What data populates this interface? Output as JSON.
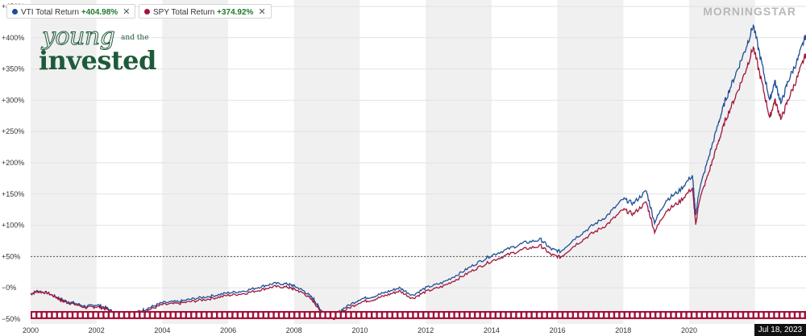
{
  "logo": {
    "line1": "young",
    "line2": "and the",
    "line3": "invested"
  },
  "brand": "MORNINGSTAR",
  "current_date_label": "Jul 18, 2023",
  "colors": {
    "vti": "#1f4e96",
    "spy": "#a0163a",
    "band": "#f0f0f0",
    "strip": "#a3133a"
  },
  "legend": [
    {
      "name": "VTI Total Return",
      "value": "+404.98%",
      "color": "#1f4e96"
    },
    {
      "name": "SPY Total Return",
      "value": "+374.92%",
      "color": "#a0163a"
    }
  ],
  "chart_data": {
    "type": "line",
    "xlabel": "",
    "ylabel": "",
    "xlim": [
      2000,
      2023.55
    ],
    "ylim": [
      -50,
      450
    ],
    "x_ticks": [
      "2000",
      "2002",
      "2004",
      "2006",
      "2008",
      "2010",
      "2012",
      "2014",
      "2016",
      "2018",
      "2020",
      "2022"
    ],
    "y_ticks": [
      "+450%",
      "+400%",
      "+350%",
      "+300%",
      "+250%",
      "+200%",
      "+150%",
      "+100%",
      "+50%",
      "−0%",
      "−50%"
    ],
    "reference_line": {
      "value": 50,
      "label": "+50%"
    },
    "grid": "alternating vertical bands",
    "legend_position": "top-left",
    "series": [
      {
        "name": "VTI Total Return",
        "points": [
          [
            2000.0,
            -10
          ],
          [
            2000.2,
            -5
          ],
          [
            2000.5,
            -8
          ],
          [
            2000.8,
            -15
          ],
          [
            2001.0,
            -20
          ],
          [
            2001.3,
            -24
          ],
          [
            2001.7,
            -30
          ],
          [
            2002.0,
            -27
          ],
          [
            2002.3,
            -32
          ],
          [
            2002.6,
            -42
          ],
          [
            2002.8,
            -45
          ],
          [
            2003.0,
            -44
          ],
          [
            2003.3,
            -38
          ],
          [
            2003.6,
            -32
          ],
          [
            2004.0,
            -24
          ],
          [
            2004.5,
            -22
          ],
          [
            2005.0,
            -17
          ],
          [
            2005.5,
            -13
          ],
          [
            2006.0,
            -8
          ],
          [
            2006.5,
            -5
          ],
          [
            2007.0,
            2
          ],
          [
            2007.4,
            7
          ],
          [
            2007.8,
            6
          ],
          [
            2008.0,
            3
          ],
          [
            2008.3,
            -5
          ],
          [
            2008.6,
            -18
          ],
          [
            2008.8,
            -35
          ],
          [
            2009.0,
            -42
          ],
          [
            2009.2,
            -47
          ],
          [
            2009.5,
            -33
          ],
          [
            2010.0,
            -18
          ],
          [
            2010.4,
            -14
          ],
          [
            2010.8,
            -7
          ],
          [
            2011.2,
            0
          ],
          [
            2011.6,
            -12
          ],
          [
            2012.0,
            0
          ],
          [
            2012.5,
            8
          ],
          [
            2013.0,
            22
          ],
          [
            2013.5,
            38
          ],
          [
            2014.0,
            52
          ],
          [
            2014.5,
            62
          ],
          [
            2015.0,
            72
          ],
          [
            2015.5,
            77
          ],
          [
            2015.8,
            62
          ],
          [
            2016.1,
            58
          ],
          [
            2016.5,
            78
          ],
          [
            2017.0,
            97
          ],
          [
            2017.5,
            115
          ],
          [
            2018.0,
            142
          ],
          [
            2018.3,
            135
          ],
          [
            2018.7,
            155
          ],
          [
            2018.95,
            105
          ],
          [
            2019.3,
            140
          ],
          [
            2019.7,
            155
          ],
          [
            2020.1,
            180
          ],
          [
            2020.2,
            115
          ],
          [
            2020.3,
            155
          ],
          [
            2020.6,
            210
          ],
          [
            2020.9,
            265
          ],
          [
            2021.1,
            300
          ],
          [
            2021.4,
            340
          ],
          [
            2021.7,
            380
          ],
          [
            2021.95,
            420
          ],
          [
            2022.2,
            360
          ],
          [
            2022.45,
            300
          ],
          [
            2022.6,
            330
          ],
          [
            2022.8,
            295
          ],
          [
            2023.0,
            330
          ],
          [
            2023.3,
            365
          ],
          [
            2023.55,
            405
          ]
        ]
      },
      {
        "name": "SPY Total Return",
        "points": [
          [
            2000.0,
            -10
          ],
          [
            2000.2,
            -6
          ],
          [
            2000.5,
            -8
          ],
          [
            2000.8,
            -16
          ],
          [
            2001.0,
            -22
          ],
          [
            2001.3,
            -26
          ],
          [
            2001.7,
            -32
          ],
          [
            2002.0,
            -30
          ],
          [
            2002.3,
            -34
          ],
          [
            2002.6,
            -44
          ],
          [
            2002.8,
            -46
          ],
          [
            2003.0,
            -45
          ],
          [
            2003.3,
            -40
          ],
          [
            2003.6,
            -35
          ],
          [
            2004.0,
            -27
          ],
          [
            2004.5,
            -25
          ],
          [
            2005.0,
            -21
          ],
          [
            2005.5,
            -17
          ],
          [
            2006.0,
            -12
          ],
          [
            2006.5,
            -9
          ],
          [
            2007.0,
            -3
          ],
          [
            2007.4,
            2
          ],
          [
            2007.8,
            1
          ],
          [
            2008.0,
            -2
          ],
          [
            2008.3,
            -9
          ],
          [
            2008.6,
            -22
          ],
          [
            2008.8,
            -38
          ],
          [
            2009.0,
            -45
          ],
          [
            2009.2,
            -49
          ],
          [
            2009.5,
            -37
          ],
          [
            2010.0,
            -23
          ],
          [
            2010.4,
            -19
          ],
          [
            2010.8,
            -12
          ],
          [
            2011.2,
            -5
          ],
          [
            2011.6,
            -17
          ],
          [
            2012.0,
            -6
          ],
          [
            2012.5,
            2
          ],
          [
            2013.0,
            15
          ],
          [
            2013.5,
            30
          ],
          [
            2014.0,
            43
          ],
          [
            2014.5,
            53
          ],
          [
            2015.0,
            62
          ],
          [
            2015.5,
            67
          ],
          [
            2015.8,
            53
          ],
          [
            2016.1,
            49
          ],
          [
            2016.5,
            67
          ],
          [
            2017.0,
            85
          ],
          [
            2017.5,
            101
          ],
          [
            2018.0,
            125
          ],
          [
            2018.3,
            118
          ],
          [
            2018.7,
            137
          ],
          [
            2018.95,
            90
          ],
          [
            2019.3,
            123
          ],
          [
            2019.7,
            137
          ],
          [
            2020.1,
            160
          ],
          [
            2020.2,
            100
          ],
          [
            2020.3,
            138
          ],
          [
            2020.6,
            185
          ],
          [
            2020.9,
            235
          ],
          [
            2021.1,
            268
          ],
          [
            2021.4,
            305
          ],
          [
            2021.7,
            345
          ],
          [
            2021.95,
            385
          ],
          [
            2022.2,
            330
          ],
          [
            2022.45,
            272
          ],
          [
            2022.6,
            300
          ],
          [
            2022.8,
            270
          ],
          [
            2023.0,
            300
          ],
          [
            2023.3,
            338
          ],
          [
            2023.55,
            375
          ]
        ]
      }
    ]
  }
}
